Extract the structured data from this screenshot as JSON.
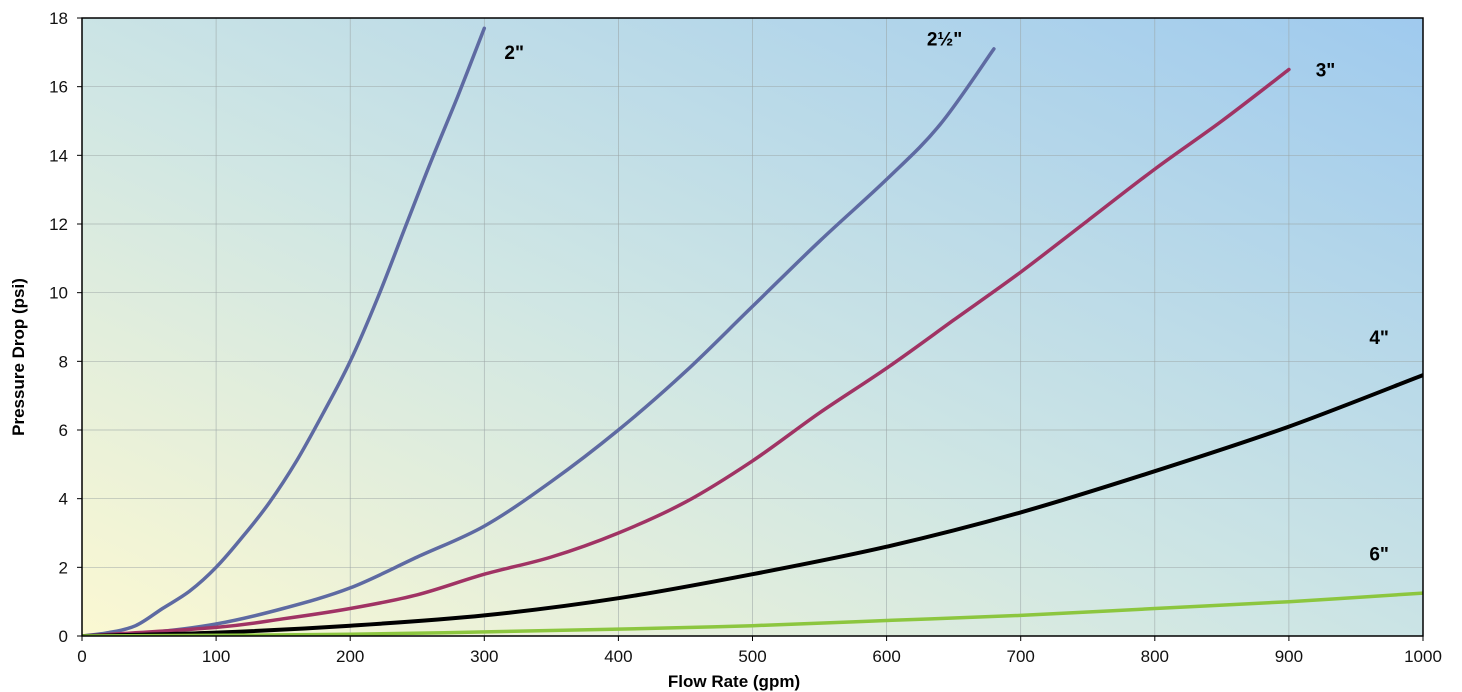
{
  "chart_data": {
    "type": "line",
    "title": "",
    "xlabel": "Flow Rate (gpm)",
    "ylabel": "Pressure Drop (psi)",
    "xlim": [
      0,
      1000
    ],
    "ylim": [
      0,
      18
    ],
    "x_ticks": [
      0,
      100,
      200,
      300,
      400,
      500,
      600,
      700,
      800,
      900,
      1000
    ],
    "y_ticks": [
      0,
      2,
      4,
      6,
      8,
      10,
      12,
      14,
      16,
      18
    ],
    "grid": true,
    "series": [
      {
        "name": "2\"",
        "color": "#5e6aa2",
        "points": [
          [
            0,
            0
          ],
          [
            20,
            0.1
          ],
          [
            40,
            0.3
          ],
          [
            60,
            0.8
          ],
          [
            80,
            1.3
          ],
          [
            100,
            2.0
          ],
          [
            120,
            2.9
          ],
          [
            140,
            3.9
          ],
          [
            160,
            5.1
          ],
          [
            180,
            6.5
          ],
          [
            200,
            8.0
          ],
          [
            220,
            9.8
          ],
          [
            240,
            11.8
          ],
          [
            260,
            13.8
          ],
          [
            280,
            15.7
          ],
          [
            300,
            17.7
          ]
        ]
      },
      {
        "name": "2½\"",
        "color": "#5e6aa2",
        "points": [
          [
            0,
            0
          ],
          [
            50,
            0.1
          ],
          [
            100,
            0.35
          ],
          [
            150,
            0.8
          ],
          [
            200,
            1.4
          ],
          [
            250,
            2.3
          ],
          [
            300,
            3.2
          ],
          [
            350,
            4.5
          ],
          [
            400,
            6.0
          ],
          [
            450,
            7.7
          ],
          [
            500,
            9.6
          ],
          [
            550,
            11.5
          ],
          [
            600,
            13.3
          ],
          [
            640,
            14.9
          ],
          [
            680,
            17.1
          ]
        ]
      },
      {
        "name": "3\"",
        "color": "#a03364",
        "points": [
          [
            0,
            0
          ],
          [
            100,
            0.25
          ],
          [
            150,
            0.5
          ],
          [
            200,
            0.8
          ],
          [
            250,
            1.2
          ],
          [
            300,
            1.8
          ],
          [
            350,
            2.3
          ],
          [
            400,
            3.0
          ],
          [
            450,
            3.9
          ],
          [
            500,
            5.1
          ],
          [
            550,
            6.5
          ],
          [
            600,
            7.8
          ],
          [
            650,
            9.2
          ],
          [
            700,
            10.6
          ],
          [
            750,
            12.1
          ],
          [
            800,
            13.6
          ],
          [
            850,
            15.0
          ],
          [
            900,
            16.5
          ]
        ]
      },
      {
        "name": "4\"",
        "color": "#000000",
        "points": [
          [
            0,
            0
          ],
          [
            100,
            0.1
          ],
          [
            200,
            0.3
          ],
          [
            300,
            0.6
          ],
          [
            400,
            1.1
          ],
          [
            500,
            1.8
          ],
          [
            600,
            2.6
          ],
          [
            700,
            3.6
          ],
          [
            800,
            4.8
          ],
          [
            900,
            6.1
          ],
          [
            1000,
            7.6
          ]
        ]
      },
      {
        "name": "6\"",
        "color": "#8cc63f",
        "points": [
          [
            0,
            0
          ],
          [
            200,
            0.05
          ],
          [
            400,
            0.2
          ],
          [
            500,
            0.3
          ],
          [
            600,
            0.45
          ],
          [
            700,
            0.6
          ],
          [
            800,
            0.8
          ],
          [
            900,
            1.0
          ],
          [
            1000,
            1.25
          ]
        ]
      }
    ],
    "series_labels": [
      {
        "name": "2\"",
        "text": "2\"",
        "x": 315,
        "y": 16.8
      },
      {
        "name": "2½\"",
        "text": "2½\"",
        "x": 630,
        "y": 17.2
      },
      {
        "name": "3\"",
        "text": "3\"",
        "x": 920,
        "y": 16.3
      },
      {
        "name": "4\"",
        "text": "4\"",
        "x": 960,
        "y": 8.5
      },
      {
        "name": "6\"",
        "text": "6\"",
        "x": 960,
        "y": 2.2
      }
    ]
  }
}
